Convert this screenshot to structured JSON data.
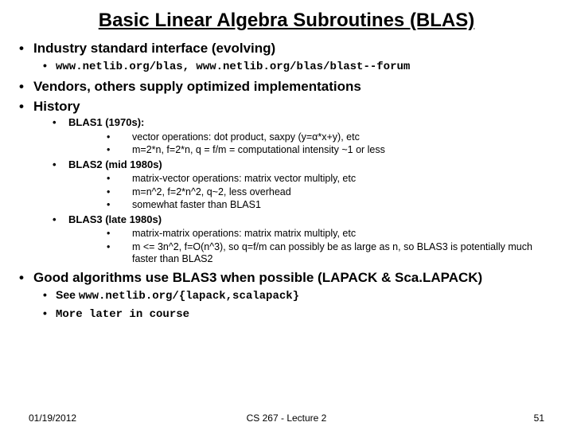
{
  "title": "Basic Linear Algebra Subroutines (BLAS)",
  "b1": "Industry standard interface (evolving)",
  "b1a": "www.netlib.org/blas,   www.netlib.org/blas/blast--forum",
  "b2": "Vendors, others supply optimized implementations",
  "b3": "History",
  "b3a": "BLAS1 (1970s):",
  "b3a1": "vector operations: dot product, saxpy (y=α*x+y), etc",
  "b3a2": "m=2*n, f=2*n, q = f/m = computational intensity ~1 or less",
  "b3b": "BLAS2 (mid 1980s)",
  "b3b1": "matrix-vector operations: matrix vector multiply, etc",
  "b3b2": "m=n^2, f=2*n^2, q~2, less overhead",
  "b3b3": "somewhat faster than BLAS1",
  "b3c": "BLAS3 (late 1980s)",
  "b3c1": "matrix-matrix operations: matrix matrix multiply, etc",
  "b3c2": "m <= 3n^2, f=O(n^3), so q=f/m can possibly be as large as n, so BLAS3 is potentially much faster than BLAS2",
  "b4": "Good algorithms use BLAS3 when possible (LAPACK & Sca.LAPACK)",
  "b4a_pre": "See ",
  "b4a_code": "www.netlib.org/{lapack,scalapack}",
  "b4b": "More later in course",
  "footer": {
    "date": "01/19/2012",
    "center": "CS 267 - Lecture 2",
    "page": "51"
  }
}
